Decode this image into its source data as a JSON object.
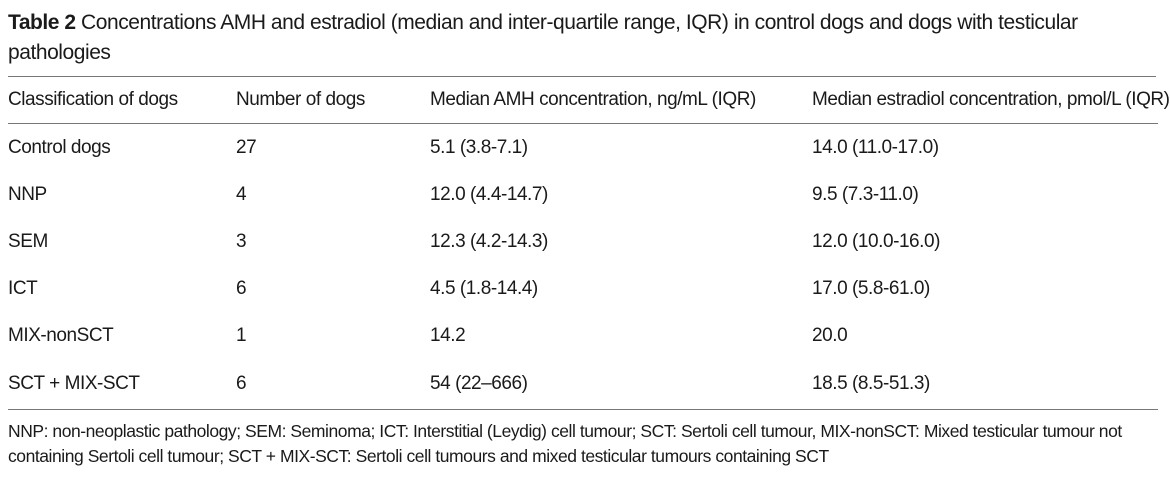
{
  "caption": {
    "label": "Table 2",
    "text": "Concentrations AMH and estradiol (median and inter-quartile range, IQR) in control dogs and dogs with testicular pathologies"
  },
  "table": {
    "headers": [
      "Classification of dogs",
      "Number of dogs",
      "Median AMH concentration, ng/mL (IQR)",
      "Median estradiol concentration, pmol/L (IQR)"
    ],
    "rows": [
      [
        "Control dogs",
        "27",
        "5.1 (3.8-7.1)",
        "14.0 (11.0-17.0)"
      ],
      [
        "NNP",
        "4",
        "12.0 (4.4-14.7)",
        "9.5 (7.3-11.0)"
      ],
      [
        "SEM",
        "3",
        "12.3 (4.2-14.3)",
        "12.0 (10.0-16.0)"
      ],
      [
        "ICT",
        "6",
        "4.5 (1.8-14.4)",
        "17.0 (5.8-61.0)"
      ],
      [
        "MIX-nonSCT",
        "1",
        "14.2",
        "20.0"
      ],
      [
        "SCT + MIX-SCT",
        "6",
        "54 (22–666)",
        "18.5 (8.5-51.3)"
      ]
    ]
  },
  "footnote": "NNP: non-neoplastic pathology; SEM: Seminoma; ICT: Interstitial (Leydig) cell tumour; SCT: Sertoli cell tumour, MIX-nonSCT: Mixed testicular tumour not containing Sertoli cell tumour; SCT + MIX-SCT: Sertoli cell tumours and mixed testicular tumours containing SCT"
}
